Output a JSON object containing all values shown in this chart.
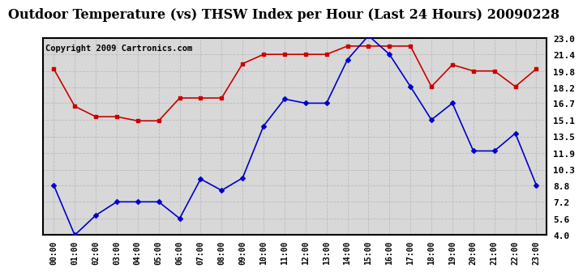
{
  "title": "Outdoor Temperature (vs) THSW Index per Hour (Last 24 Hours) 20090228",
  "copyright": "Copyright 2009 Cartronics.com",
  "x_labels": [
    "00:00",
    "01:00",
    "02:00",
    "03:00",
    "04:00",
    "05:00",
    "06:00",
    "07:00",
    "08:00",
    "09:00",
    "10:00",
    "11:00",
    "12:00",
    "13:00",
    "14:00",
    "15:00",
    "16:00",
    "17:00",
    "18:00",
    "19:00",
    "20:00",
    "21:00",
    "22:00",
    "23:00"
  ],
  "y_ticks": [
    4.0,
    5.6,
    7.2,
    8.8,
    10.3,
    11.9,
    13.5,
    15.1,
    16.7,
    18.2,
    19.8,
    21.4,
    23.0
  ],
  "ylim": [
    4.0,
    23.0
  ],
  "red_data": [
    20.0,
    16.4,
    15.4,
    15.4,
    15.0,
    15.0,
    17.2,
    17.2,
    17.2,
    20.5,
    21.4,
    21.4,
    21.4,
    21.4,
    22.2,
    22.2,
    22.2,
    22.2,
    18.3,
    20.4,
    19.8,
    19.8,
    18.3,
    20.0
  ],
  "blue_data": [
    8.8,
    4.0,
    5.9,
    7.2,
    7.2,
    7.2,
    5.6,
    9.4,
    8.3,
    9.5,
    14.5,
    17.1,
    16.7,
    16.7,
    20.9,
    23.2,
    21.4,
    18.3,
    15.1,
    16.7,
    12.1,
    12.1,
    13.8,
    8.8
  ],
  "red_color": "#cc0000",
  "blue_color": "#0000cc",
  "bg_color": "#d8d8d8",
  "grid_color": "#bbbbbb",
  "title_fontsize": 11.5,
  "copyright_fontsize": 7.5,
  "ytick_fontsize": 8,
  "xtick_fontsize": 7
}
